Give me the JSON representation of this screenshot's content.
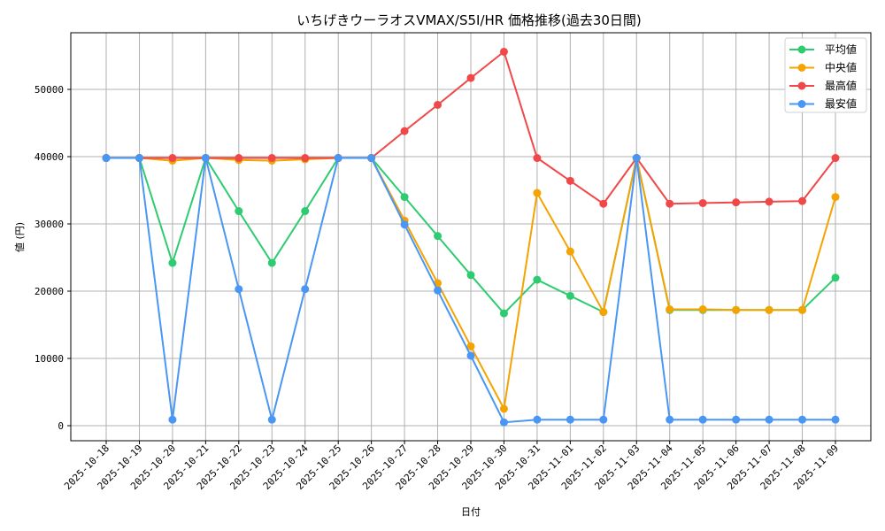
{
  "chart_data": {
    "type": "line",
    "title": "いちげきウーラオスVMAX/S5I/HR 価格推移(過去30日間)",
    "xlabel": "日付",
    "ylabel": "値 (円)",
    "ylim": [
      -2500,
      58000
    ],
    "yticks": [
      0,
      10000,
      20000,
      30000,
      40000,
      50000
    ],
    "grid": true,
    "legend_position": "upper right",
    "x": [
      "2025-10-18",
      "2025-10-19",
      "2025-10-20",
      "2025-10-21",
      "2025-10-22",
      "2025-10-23",
      "2025-10-24",
      "2025-10-25",
      "2025-10-26",
      "2025-10-27",
      "2025-10-28",
      "2025-10-29",
      "2025-10-30",
      "2025-10-31",
      "2025-11-01",
      "2025-11-02",
      "2025-11-03",
      "2025-11-04",
      "2025-11-05",
      "2025-11-06",
      "2025-11-07",
      "2025-11-08",
      "2025-11-09"
    ],
    "series": [
      {
        "name": "平均値",
        "color": "#2ecc71",
        "values": [
          39800,
          39800,
          24200,
          39800,
          31900,
          24200,
          31900,
          39800,
          39800,
          34000,
          28200,
          22400,
          16700,
          21700,
          19300,
          16900,
          39800,
          17200,
          17200,
          17200,
          17200,
          17200,
          22000
        ]
      },
      {
        "name": "中央値",
        "color": "#f5a300",
        "values": [
          39800,
          39800,
          39400,
          39800,
          39500,
          39400,
          39600,
          39800,
          39800,
          30500,
          21200,
          11800,
          2500,
          34600,
          25900,
          16900,
          39800,
          17300,
          17300,
          17200,
          17200,
          17200,
          34000
        ]
      },
      {
        "name": "最高値",
        "color": "#f04848",
        "values": [
          39800,
          39800,
          39800,
          39800,
          39800,
          39800,
          39800,
          39800,
          39800,
          43800,
          47700,
          51700,
          55600,
          39800,
          36400,
          33000,
          39800,
          33000,
          33100,
          33200,
          33300,
          33400,
          39800
        ]
      },
      {
        "name": "最安値",
        "color": "#4a96f5",
        "values": [
          39800,
          39800,
          900,
          39800,
          20300,
          900,
          20300,
          39800,
          39800,
          29900,
          20100,
          10400,
          500,
          900,
          900,
          900,
          39800,
          900,
          900,
          900,
          900,
          900,
          900
        ]
      }
    ]
  }
}
